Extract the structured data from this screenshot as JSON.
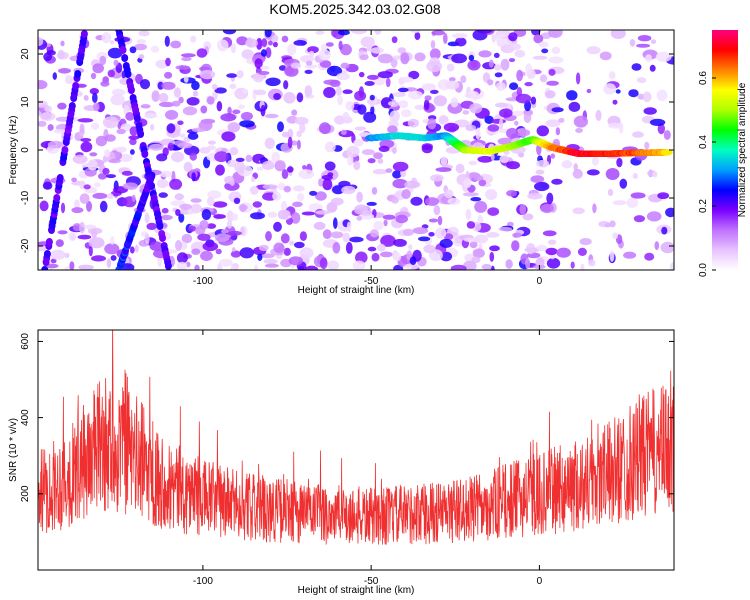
{
  "title": "KOM5.2025.342.03.02.G08",
  "chart_data": [
    {
      "type": "heatmap",
      "xlabel": "Height of straight line (km)",
      "ylabel": "Frequency (Hz)",
      "xlim": [
        -149,
        40
      ],
      "ylim": [
        -25,
        25
      ],
      "xticks": [
        -100,
        -50,
        0
      ],
      "yticks": [
        -20,
        -10,
        0,
        10,
        20
      ],
      "colorbar": {
        "label": "Normalized spectral amplitude",
        "range": [
          0.0,
          0.75
        ],
        "ticks": [
          0.0,
          0.2,
          0.4,
          0.6
        ],
        "tick_labels": [
          "0.0",
          "0.2",
          "0.4",
          "0.6"
        ],
        "colormap": [
          "#ffffff",
          "#e7c2ff",
          "#c070ff",
          "#7a00ff",
          "#0000ff",
          "#00a0ff",
          "#00ffc0",
          "#00ff00",
          "#b0ff00",
          "#ffff00",
          "#ff8000",
          "#ff0000",
          "#ff0080"
        ]
      },
      "features": [
        {
          "name": "signal-track",
          "x": [
            -50,
            -42,
            -34,
            -28,
            -22,
            -15,
            -8,
            -2,
            4,
            12,
            20,
            28,
            38
          ],
          "y": [
            2.5,
            3.0,
            2.5,
            3.0,
            0.0,
            -0.3,
            0.8,
            2.2,
            0.5,
            -0.8,
            -0.8,
            -0.6,
            -0.5
          ],
          "level": [
            0.3,
            0.35,
            0.35,
            0.3,
            0.5,
            0.55,
            0.5,
            0.45,
            0.62,
            0.7,
            0.68,
            0.65,
            0.6
          ]
        },
        {
          "name": "oblique-stripe-1",
          "x": [
            -147,
            -135
          ],
          "y": [
            -25,
            25
          ],
          "level": [
            0.2,
            0.2
          ]
        },
        {
          "name": "oblique-stripe-2",
          "x": [
            -125,
            -115
          ],
          "y": [
            -25,
            -5
          ],
          "level": [
            0.25,
            0.2
          ]
        },
        {
          "name": "oblique-stripe-3",
          "x": [
            -125,
            -110
          ],
          "y": [
            25,
            -25
          ],
          "level": [
            0.2,
            0.2
          ]
        }
      ]
    },
    {
      "type": "line",
      "xlabel": "Height of straight line (km)",
      "ylabel": "SNR (10 * v/v)",
      "xlim": [
        -149,
        40
      ],
      "ylim": [
        0,
        630
      ],
      "xticks": [
        -100,
        -50,
        0
      ],
      "yticks": [
        200,
        400,
        600
      ],
      "color": "#f03030",
      "series": [
        {
          "x": [
            -149,
            -140,
            -130,
            -120,
            -110,
            -100,
            -90,
            -80,
            -70,
            -60,
            -50,
            -40,
            -30,
            -20,
            -10,
            0,
            10,
            20,
            30,
            40
          ],
          "y": [
            200,
            240,
            330,
            300,
            220,
            190,
            170,
            160,
            150,
            145,
            140,
            145,
            150,
            160,
            180,
            200,
            220,
            250,
            300,
            320
          ]
        }
      ]
    }
  ]
}
